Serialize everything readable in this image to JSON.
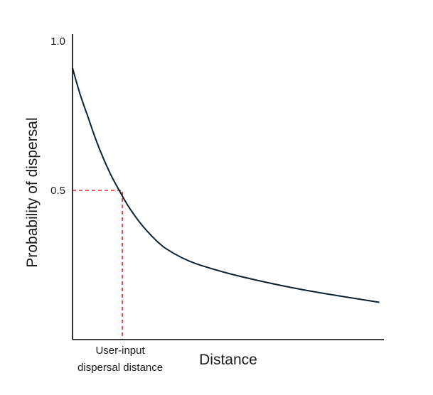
{
  "chart_data": {
    "type": "line",
    "title": "",
    "xlabel": "Distance",
    "ylabel": "Probability of dispersal",
    "ylim": [
      0,
      1.0
    ],
    "xlim": [
      0,
      1
    ],
    "y_ticks": [
      {
        "value": 1.0,
        "label": "1.0"
      },
      {
        "value": 0.5,
        "label": "0.5"
      }
    ],
    "grid": false,
    "legend": "none",
    "series": [
      {
        "color": "#0d2233",
        "x": [
          0,
          0.025,
          0.05,
          0.075,
          0.1,
          0.125,
          0.15,
          0.175,
          0.2,
          0.225,
          0.25,
          0.275,
          0.3,
          0.35,
          0.4,
          0.5,
          0.6,
          0.7,
          0.8,
          0.9,
          0.985
        ],
        "y": [
          0.91,
          0.82,
          0.745,
          0.67,
          0.605,
          0.548,
          0.5,
          0.454,
          0.415,
          0.381,
          0.352,
          0.326,
          0.305,
          0.275,
          0.253,
          0.222,
          0.197,
          0.175,
          0.156,
          0.139,
          0.125
        ]
      }
    ],
    "reference_line": {
      "color": "#e02020",
      "style": "dashed",
      "x": 0.16,
      "y": 0.5,
      "label_lines": [
        "User-input",
        "dispersal distance"
      ]
    }
  }
}
